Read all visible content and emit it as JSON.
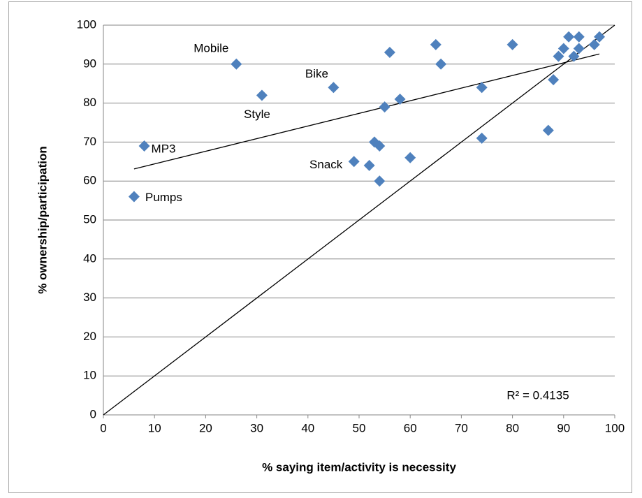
{
  "chart_data": {
    "type": "scatter",
    "x_label": "% saying item/activity is necessity",
    "y_label": "% ownership/participation",
    "xlim": [
      0,
      100
    ],
    "ylim": [
      0,
      100
    ],
    "xticks": [
      0,
      10,
      20,
      30,
      40,
      50,
      60,
      70,
      80,
      90,
      100
    ],
    "yticks": [
      0,
      10,
      20,
      30,
      40,
      50,
      60,
      70,
      80,
      90,
      100
    ],
    "grid": true,
    "series": [
      {
        "color": "#4f81bd",
        "x": [
          6,
          8,
          26,
          31,
          45,
          49,
          52,
          53,
          54,
          54,
          55,
          56,
          58,
          60,
          65,
          66,
          74,
          74,
          80,
          87,
          88,
          89,
          90,
          91,
          92,
          93,
          93,
          96,
          97
        ],
        "values": [
          56,
          69,
          90,
          82,
          84,
          65,
          64,
          70,
          69,
          60,
          79,
          93,
          81,
          66,
          95,
          90,
          84,
          71,
          95,
          73,
          86,
          92,
          94,
          97,
          92,
          97,
          94,
          95,
          97
        ],
        "point_labels": [
          "Pumps",
          "MP3",
          "Mobile",
          "Style",
          "Bike",
          "Snack",
          null,
          null,
          null,
          null,
          null,
          null,
          null,
          null,
          null,
          null,
          null,
          null,
          null,
          null,
          null,
          null,
          null,
          null,
          null,
          null,
          null,
          null,
          null
        ]
      }
    ],
    "trendline": {
      "x": [
        6,
        97
      ],
      "values": [
        63.1,
        92.6
      ],
      "annotation": "R² = 0.4135"
    },
    "reference_line": {
      "x": [
        0,
        100
      ],
      "values": [
        0,
        100
      ]
    }
  }
}
